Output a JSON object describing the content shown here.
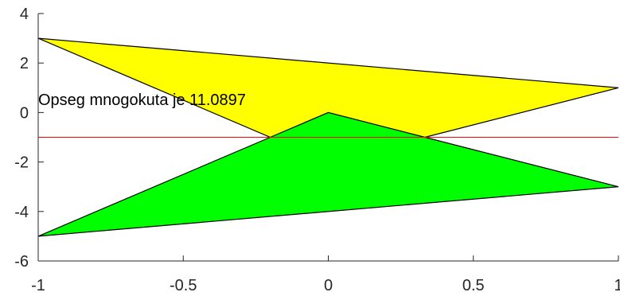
{
  "chart_data": {
    "type": "area",
    "xlim": [
      -1,
      1
    ],
    "ylim": [
      -6,
      4
    ],
    "x_ticks": [
      -1,
      -0.5,
      0,
      0.5,
      1
    ],
    "x_tick_labels": [
      "-1",
      "-0.5",
      "0",
      "0.5",
      "1"
    ],
    "y_ticks": [
      -6,
      -4,
      -2,
      0,
      2,
      4
    ],
    "y_tick_labels": [
      "-6",
      "-4",
      "-2",
      "0",
      "2",
      "4"
    ],
    "grid": false,
    "box": false,
    "polygons": [
      {
        "fill": "#ffff00",
        "stroke": "#000000",
        "points": [
          [
            -1,
            3
          ],
          [
            1,
            1
          ],
          [
            0.333,
            -1
          ],
          [
            -0.2,
            -1
          ]
        ]
      },
      {
        "fill": "#00ff00",
        "stroke": "#000000",
        "points": [
          [
            -1,
            -5
          ],
          [
            1,
            -3
          ],
          [
            0.333,
            -1
          ],
          [
            0,
            0
          ],
          [
            -0.2,
            -1
          ]
        ]
      }
    ],
    "reference_line": {
      "y": -1,
      "color": "#ff0000"
    },
    "annotations": [
      {
        "text": "Opseg mnogokuta je 11.0897",
        "x": -1,
        "y": 0.3
      }
    ]
  }
}
